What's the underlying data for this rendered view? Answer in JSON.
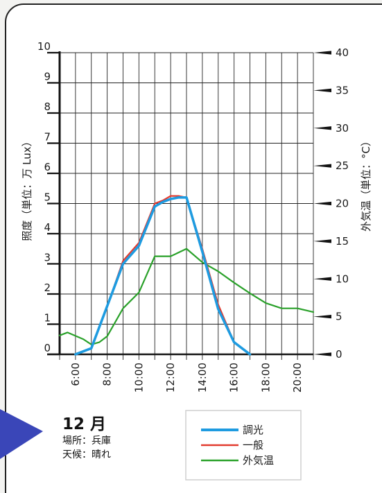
{
  "info": {
    "month": "12 月",
    "location": "場所：兵庫",
    "weather": "天候：晴れ"
  },
  "colors": {
    "light_control": "#1e9be0",
    "general": "#e23a2e",
    "outdoor_temp": "#2aa12a",
    "arrow": "#3a46b8",
    "grid": "#222222"
  },
  "chart_data": {
    "type": "line",
    "ylabel": "照度（単位：万 Lux）",
    "y2label": "外気温（単位：°C）",
    "ylim": [
      0,
      10
    ],
    "y2lim": [
      0,
      40
    ],
    "yticks": [
      "0",
      "1",
      "2",
      "3",
      "4",
      "5",
      "6",
      "7",
      "8",
      "9",
      "10"
    ],
    "y2ticks": [
      "0",
      "5",
      "10",
      "15",
      "20",
      "25",
      "30",
      "35",
      "40"
    ],
    "xlim": [
      5,
      21
    ],
    "xticks": [
      "6:00",
      "8:00",
      "10:00",
      "12:00",
      "14:00",
      "16:00",
      "18:00",
      "20:00"
    ],
    "grid": true,
    "legend_position": "bottom-right",
    "series": [
      {
        "name": "調光",
        "axis": "left",
        "color": "#1e9be0",
        "x": [
          6,
          7,
          8,
          9,
          10,
          11,
          11.5,
          12,
          12.5,
          13,
          14,
          15,
          16,
          17
        ],
        "y": [
          0,
          0.2,
          1.6,
          3.0,
          3.6,
          4.9,
          5.05,
          5.15,
          5.2,
          5.2,
          3.4,
          1.5,
          0.4,
          0
        ]
      },
      {
        "name": "一般",
        "axis": "left",
        "color": "#e23a2e",
        "x": [
          6,
          7,
          8,
          9,
          10,
          11,
          11.5,
          12,
          12.5,
          13,
          14,
          15,
          16,
          17
        ],
        "y": [
          0,
          0.2,
          1.6,
          3.1,
          3.7,
          5.0,
          5.1,
          5.25,
          5.25,
          5.2,
          3.5,
          1.65,
          0.4,
          0
        ]
      },
      {
        "name": "外気温",
        "axis": "right",
        "color": "#2aa12a",
        "x": [
          5,
          5.5,
          6.5,
          7,
          7.5,
          8,
          9,
          10,
          11,
          12,
          13,
          14,
          15,
          16,
          17,
          18,
          19,
          20,
          21
        ],
        "y": [
          2.5,
          2.9,
          2.0,
          1.3,
          1.6,
          2.4,
          6.1,
          8.2,
          13.0,
          13.0,
          14.0,
          12.2,
          11.0,
          9.5,
          8.1,
          6.8,
          6.1,
          6.1,
          5.6
        ]
      }
    ]
  }
}
